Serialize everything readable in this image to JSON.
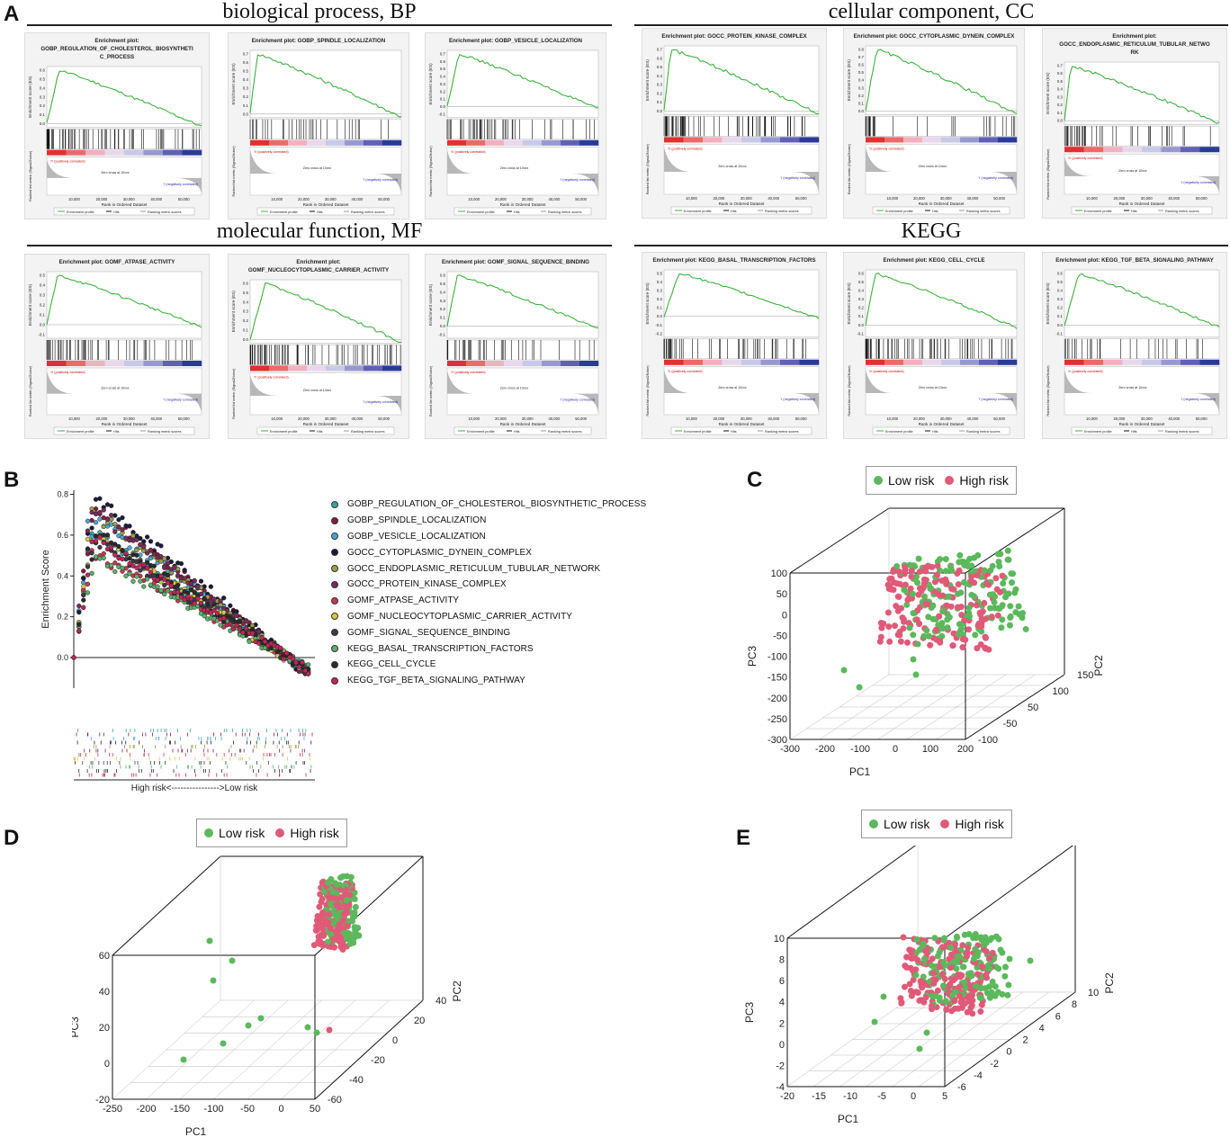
{
  "panels": {
    "A": "A",
    "B": "B",
    "C": "C",
    "D": "D",
    "E": "E"
  },
  "sections": {
    "bp": "biological process, BP",
    "cc": "cellular component, CC",
    "mf": "molecular function, MF",
    "kegg": "KEGG"
  },
  "gsea_common": {
    "es_label": "Enrichment score (ES)",
    "rank_label": "Rank in Ordered Dataset",
    "metric_label": "Ranked list metric (Signal2Noise)",
    "pos_label": "'h' (positively correlated)",
    "neg_label": "'l' (negatively correlated)",
    "zero_cross": "Zero cross at 10xxx",
    "legend_profile": "Enrichment profile",
    "legend_hits": "Hits",
    "legend_metric": "Ranking metric scores"
  },
  "gsea_plots": [
    {
      "title": "Enrichment plot: GOBP_REGULATION_OF_CHOLESTEROL_BIOSYNTHETI C_PROCESS",
      "yticks": [
        "0.6",
        "0.5",
        "0.4",
        "0.3",
        "0.2",
        "0.1",
        "0.0"
      ],
      "xticks": [
        "10,000",
        "20,000",
        "30,000",
        "40,000",
        "50,000"
      ]
    },
    {
      "title": "Enrichment plot: GOBP_SPINDLE_LOCALIZATION",
      "yticks": [
        "0.7",
        "0.6",
        "0.5",
        "0.4",
        "0.3",
        "0.2",
        "0.1",
        "0.0"
      ],
      "xticks": [
        "10,000",
        "20,000",
        "30,000",
        "40,000",
        "50,000"
      ]
    },
    {
      "title": "Enrichment plot: GOBP_VESICLE_LOCALIZATION",
      "yticks": [
        "0.7",
        "0.6",
        "0.5",
        "0.4",
        "0.3",
        "0.2",
        "0.1",
        "0.0",
        "-0.1"
      ],
      "xticks": [
        "10,000",
        "20,000",
        "30,000",
        "40,000",
        "50,000"
      ]
    },
    {
      "title": "Enrichment plot: GOCC_PROTEIN_KINASE_COMPLEX",
      "yticks": [
        "0.7",
        "0.6",
        "0.5",
        "0.4",
        "0.3",
        "0.2",
        "0.1",
        "0.0"
      ],
      "xticks": [
        "10,000",
        "20,000",
        "30,000",
        "40,000",
        "50,000"
      ]
    },
    {
      "title": "Enrichment plot: GOCC_CYTOPLASMIC_DYNEIN_COMPLEX",
      "yticks": [
        "0.8",
        "0.7",
        "0.6",
        "0.5",
        "0.4",
        "0.3",
        "0.2",
        "0.1",
        "0.0"
      ],
      "xticks": [
        "10,000",
        "20,000",
        "30,000",
        "40,000",
        "50,000"
      ]
    },
    {
      "title": "Enrichment plot: GOCC_ENDOPLASMIC_RETICULUM_TUBULAR_NETWO RK",
      "yticks": [
        "0.7",
        "0.6",
        "0.5",
        "0.4",
        "0.3",
        "0.2",
        "0.1",
        "0.0"
      ],
      "xticks": [
        "10,000",
        "20,000",
        "30,000",
        "40,000",
        "50,000"
      ]
    },
    {
      "title": "Enrichment plot: GOMF_ATPASE_ACTIVITY",
      "yticks": [
        "0.5",
        "0.4",
        "0.3",
        "0.2",
        "0.1",
        "0.0",
        "-0.1"
      ],
      "xticks": [
        "10,000",
        "20,000",
        "30,000",
        "40,000",
        "50,000"
      ]
    },
    {
      "title": "Enrichment plot: GOMF_NUCLEOCYTOPLASMIC_CARRIER_ACTIVITY",
      "yticks": [
        "0.6",
        "0.5",
        "0.4",
        "0.3",
        "0.2",
        "0.1",
        "0.0"
      ],
      "xticks": [
        "10,000",
        "20,000",
        "30,000",
        "40,000",
        "50,000"
      ]
    },
    {
      "title": "Enrichment plot: GOMF_SIGNAL_SEQUENCE_BINDING",
      "yticks": [
        "0.6",
        "0.5",
        "0.4",
        "0.3",
        "0.2",
        "0.1",
        "0.0",
        "-0.1"
      ],
      "xticks": [
        "10,000",
        "20,000",
        "30,000",
        "40,000",
        "50,000"
      ]
    },
    {
      "title": "Enrichment plot: KEGG_BASAL_TRANSCRIPTION_FACTORS",
      "yticks": [
        "0.5",
        "0.4",
        "0.3",
        "0.2",
        "0.1",
        "0.0",
        "-0.1",
        "-0.2"
      ],
      "xticks": [
        "10,000",
        "20,000",
        "30,000",
        "40,000",
        "50,000"
      ]
    },
    {
      "title": "Enrichment plot: KEGG_CELL_CYCLE",
      "yticks": [
        "0.6",
        "0.5",
        "0.4",
        "0.3",
        "0.2",
        "0.1",
        "0.0",
        "-0.1"
      ],
      "xticks": [
        "10,000",
        "20,000",
        "30,000",
        "40,000",
        "50,000"
      ]
    },
    {
      "title": "Enrichment plot: KEGG_TGF_BETA_SIGNALING_PATHWAY",
      "yticks": [
        "0.6",
        "0.5",
        "0.4",
        "0.3",
        "0.2",
        "0.1",
        "0.0",
        "-0.1"
      ],
      "xticks": [
        "10,000",
        "20,000",
        "30,000",
        "40,000",
        "50,000"
      ]
    }
  ],
  "chart_data": [
    {
      "type": "scatter",
      "panel": "B",
      "ylabel": "Enrichment Score",
      "yticks": [
        "0.8",
        "0.6",
        "0.4",
        "0.2",
        "0.0"
      ],
      "ylim": [
        -0.15,
        0.82
      ],
      "bottom_label": "High risk<---------------->Low risk",
      "series": [
        {
          "name": "GOBP_REGULATION_OF_CHOLESTEROL_BIOSYNTHETIC_PROCESS",
          "color": "#3aa6a0",
          "peak": 0.62
        },
        {
          "name": "GOBP_SPINDLE_LOCALIZATION",
          "color": "#8a1b3a",
          "peak": 0.74
        },
        {
          "name": "GOBP_VESICLE_LOCALIZATION",
          "color": "#4aa6d6",
          "peak": 0.7
        },
        {
          "name": "GOCC_CYTOPLASMIC_DYNEIN_COMPLEX",
          "color": "#1b1b3a",
          "peak": 0.8
        },
        {
          "name": "GOCC_ENDOPLASMIC_RETICULUM_TUBULAR_NETWORK",
          "color": "#9aa04a",
          "peak": 0.72
        },
        {
          "name": "GOCC_PROTEIN_KINASE_COMPLEX",
          "color": "#7a2a5a",
          "peak": 0.73
        },
        {
          "name": "GOMF_ATPASE_ACTIVITY",
          "color": "#c63a4a",
          "peak": 0.52
        },
        {
          "name": "GOMF_NUCLEOCYTOPLASMIC_CARRIER_ACTIVITY",
          "color": "#d6c84a",
          "peak": 0.6
        },
        {
          "name": "GOMF_SIGNAL_SEQUENCE_BINDING",
          "color": "#3a3a4a",
          "peak": 0.58
        },
        {
          "name": "KEGG_BASAL_TRANSCRIPTION_FACTORS",
          "color": "#5ab06a",
          "peak": 0.5
        },
        {
          "name": "KEGG_CELL_CYCLE",
          "color": "#2a2a2a",
          "peak": 0.62
        },
        {
          "name": "KEGG_TGF_BETA_SIGNALING_PATHWAY",
          "color": "#c4245a",
          "peak": 0.58
        }
      ]
    },
    {
      "type": "scatter",
      "panel": "C",
      "legend": [
        {
          "label": "Low risk",
          "color": "#5cb85c"
        },
        {
          "label": "High risk",
          "color": "#e05a78"
        }
      ],
      "xlabel": "PC1",
      "ylabel": "PC3",
      "zlabel": "PC2",
      "xticks": [
        "-300",
        "-200",
        "-100",
        "0",
        "100",
        "200"
      ],
      "yticks": [
        "100",
        "50",
        "0",
        "-50",
        "-100",
        "-150",
        "-200",
        "-250",
        "-300"
      ],
      "zticks": [
        "-100",
        "-50",
        "50",
        "100",
        "150"
      ]
    },
    {
      "type": "scatter",
      "panel": "D",
      "legend": [
        {
          "label": "Low risk",
          "color": "#5cb85c"
        },
        {
          "label": "High risk",
          "color": "#e05a78"
        }
      ],
      "xlabel": "PC1",
      "ylabel": "PC3",
      "zlabel": "PC2",
      "xticks": [
        "-250",
        "-200",
        "-150",
        "-100",
        "-50",
        "0",
        "50"
      ],
      "yticks": [
        "60",
        "40",
        "20",
        "0",
        "-20"
      ],
      "zticks": [
        "-60",
        "-40",
        "-20",
        "0",
        "20",
        "40"
      ]
    },
    {
      "type": "scatter",
      "panel": "E",
      "legend": [
        {
          "label": "Low risk",
          "color": "#5cb85c"
        },
        {
          "label": "High risk",
          "color": "#e05a78"
        }
      ],
      "xlabel": "PC1",
      "ylabel": "PC3",
      "zlabel": "PC2",
      "xticks": [
        "-20",
        "-15",
        "-10",
        "-5",
        "0",
        "5"
      ],
      "yticks": [
        "10",
        "8",
        "6",
        "4",
        "2",
        "0",
        "-2",
        "-4"
      ],
      "zticks": [
        "-6",
        "-4",
        "-2",
        "0",
        "2",
        "4",
        "6",
        "8",
        "10"
      ]
    }
  ]
}
